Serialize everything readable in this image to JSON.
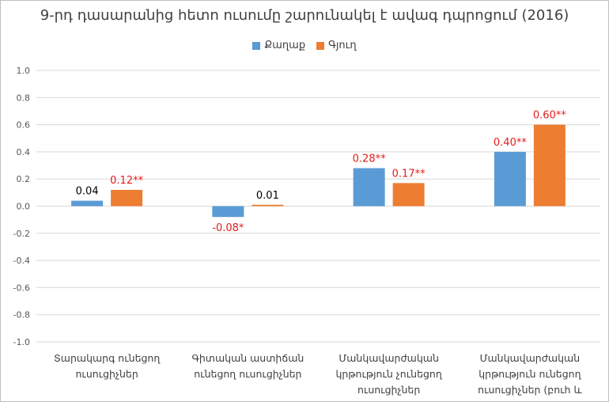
{
  "chart_data": {
    "type": "bar",
    "title": "9-րդ դասարանից հետո ուսումը շարունակել է ավագ դպրոցում (2016)",
    "categories": [
      "Տարակարգ ունեցող ուսուցիչներ",
      "Գիտական աստիճան ունեցող ուսուցիչներ",
      "Մանկավարժական կրթություն չունեցող ուսուցիչներ",
      "Մանկավարժական կրթություն ունեցող ուսուցիչներ (բուհ և միջին)"
    ],
    "series": [
      {
        "name": "Քաղաք",
        "color": "#5b9bd5",
        "values": [
          0.04,
          -0.08,
          0.28,
          0.4
        ],
        "labels": [
          "0.04",
          "-0.08*",
          "0.28**",
          "0.40**"
        ],
        "label_colors": [
          "#000000",
          "#e31b1b",
          "#e31b1b",
          "#e31b1b"
        ]
      },
      {
        "name": "Գյուղ",
        "color": "#ed7d31",
        "values": [
          0.12,
          0.01,
          0.17,
          0.6
        ],
        "labels": [
          "0.12**",
          "0.01",
          "0.17**",
          "0.60**"
        ],
        "label_colors": [
          "#e31b1b",
          "#000000",
          "#e31b1b",
          "#e31b1b"
        ]
      }
    ],
    "ylim": [
      -1.0,
      1.0
    ],
    "yticks": [
      "1.0",
      "0.8",
      "0.6",
      "0.4",
      "0.2",
      "0.0",
      "-0.2",
      "-0.4",
      "-0.6",
      "-0.8",
      "-1.0"
    ],
    "grid": true,
    "legend_position": "top-center",
    "xlabel": "",
    "ylabel": ""
  }
}
